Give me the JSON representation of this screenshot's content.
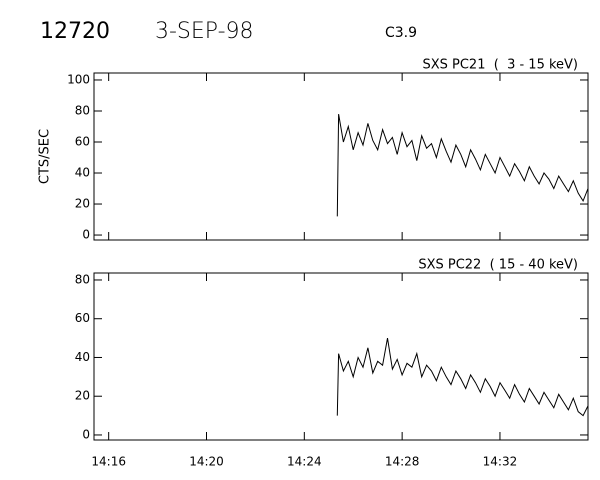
{
  "header": {
    "event": "12720",
    "date": "3-SEP-98",
    "class": "C3.9"
  },
  "chart_data": [
    {
      "type": "line",
      "title": "SXS PC21  (  3 - 15 keV)",
      "y_label": "CTS/SEC",
      "color": "#000000",
      "x": [
        25.35,
        25.4,
        25.6,
        25.8,
        26,
        26.2,
        26.4,
        26.6,
        26.8,
        27,
        27.2,
        27.4,
        27.6,
        27.8,
        28,
        28.2,
        28.4,
        28.6,
        28.8,
        29,
        29.2,
        29.4,
        29.6,
        29.8,
        30,
        30.2,
        30.4,
        30.6,
        30.8,
        31,
        31.2,
        31.4,
        31.6,
        31.8,
        32,
        32.2,
        32.4,
        32.6,
        32.8,
        33,
        33.2,
        33.4,
        33.6,
        33.8,
        34,
        34.2,
        34.4,
        34.6,
        34.8,
        35,
        35.2,
        35.4,
        35.6
      ],
      "values": [
        12,
        78,
        60,
        70,
        55,
        66,
        58,
        72,
        61,
        55,
        68,
        59,
        63,
        52,
        66,
        57,
        61,
        48,
        64,
        56,
        59,
        50,
        62,
        54,
        47,
        58,
        52,
        44,
        55,
        49,
        42,
        52,
        46,
        40,
        50,
        44,
        38,
        46,
        41,
        35,
        44,
        38,
        33,
        40,
        36,
        30,
        38,
        33,
        28,
        35,
        27,
        22,
        30
      ],
      "xlim": [
        15.4,
        35.6
      ],
      "ylim": [
        -3.2,
        104.5
      ],
      "yticks": [
        0,
        20,
        40,
        60,
        80,
        100
      ]
    },
    {
      "type": "line",
      "title": "SXS PC22  ( 15 - 40 keV)",
      "color": "#000000",
      "x": [
        25.35,
        25.4,
        25.6,
        25.8,
        26,
        26.2,
        26.4,
        26.6,
        26.8,
        27,
        27.2,
        27.4,
        27.6,
        27.8,
        28,
        28.2,
        28.4,
        28.6,
        28.8,
        29,
        29.2,
        29.4,
        29.6,
        29.8,
        30,
        30.2,
        30.4,
        30.6,
        30.8,
        31,
        31.2,
        31.4,
        31.6,
        31.8,
        32,
        32.2,
        32.4,
        32.6,
        32.8,
        33,
        33.2,
        33.4,
        33.6,
        33.8,
        34,
        34.2,
        34.4,
        34.6,
        34.8,
        35,
        35.2,
        35.4,
        35.6
      ],
      "values": [
        10,
        42,
        33,
        38,
        30,
        40,
        35,
        45,
        32,
        38,
        36,
        50,
        34,
        39,
        31,
        37,
        35,
        42,
        30,
        36,
        33,
        28,
        35,
        30,
        26,
        33,
        29,
        24,
        31,
        27,
        22,
        29,
        25,
        20,
        27,
        23,
        19,
        26,
        21,
        17,
        24,
        20,
        16,
        22,
        18,
        14,
        21,
        17,
        13,
        19,
        12,
        10,
        15
      ],
      "xlim": [
        15.4,
        35.6
      ],
      "ylim": [
        -2.6,
        83.6
      ],
      "yticks": [
        0,
        20,
        40,
        60,
        80
      ],
      "xticks": [
        {
          "value": 16,
          "label": "14:16"
        },
        {
          "value": 20,
          "label": "14:20"
        },
        {
          "value": 24,
          "label": "14:24"
        },
        {
          "value": 28,
          "label": "14:28"
        },
        {
          "value": 32,
          "label": "14:32"
        }
      ]
    }
  ]
}
